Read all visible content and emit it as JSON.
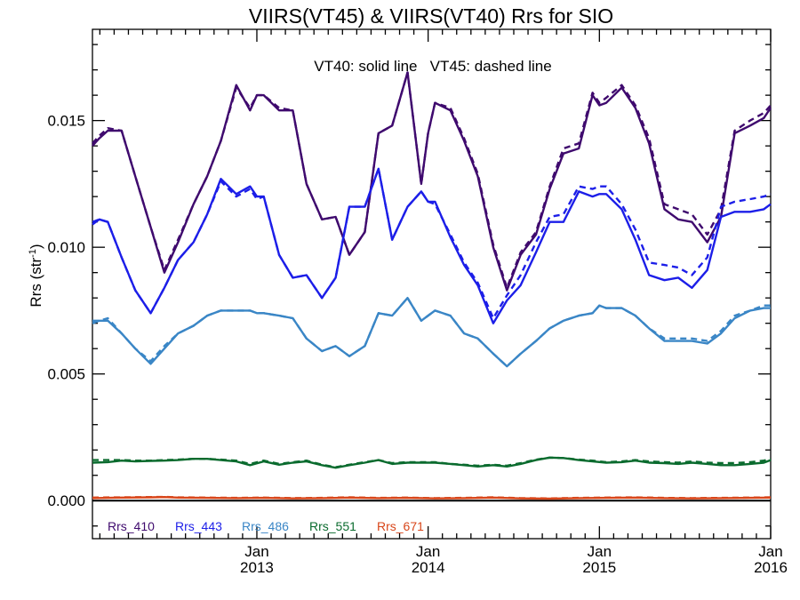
{
  "chart_data": {
    "type": "line",
    "title": "VIIRS(VT45) & VIIRS(VT40)  Rrs for SIO",
    "annotation": "VT40: solid line   VT45: dashed line",
    "ylabel": "Rrs (str",
    "ylabel_sup": "-1",
    "ylabel_close": ")",
    "xlim": [
      2012.04,
      2016.0
    ],
    "ylim": [
      -0.0015,
      0.0186
    ],
    "yticks": [
      {
        "value": 0.0,
        "label": "0.000"
      },
      {
        "value": 0.005,
        "label": "0.005"
      },
      {
        "value": 0.01,
        "label": "0.010"
      },
      {
        "value": 0.015,
        "label": "0.015"
      }
    ],
    "xticks": [
      {
        "value": 2013.0,
        "label1": "Jan",
        "label2": "2013"
      },
      {
        "value": 2014.0,
        "label1": "Jan",
        "label2": "2014"
      },
      {
        "value": 2015.0,
        "label1": "Jan",
        "label2": "2015"
      },
      {
        "value": 2016.0,
        "label1": "Jan",
        "label2": "2016"
      }
    ],
    "reference_line": 0.0,
    "legend_position": "bottom-left",
    "series": [
      {
        "name": "Rrs_410",
        "color": "#3f0a6e",
        "x": [
          2012.04,
          2012.08,
          2012.13,
          2012.21,
          2012.29,
          2012.38,
          2012.46,
          2012.54,
          2012.63,
          2012.71,
          2012.79,
          2012.88,
          2012.96,
          2013.0,
          2013.04,
          2013.13,
          2013.21,
          2013.29,
          2013.38,
          2013.46,
          2013.54,
          2013.63,
          2013.71,
          2013.79,
          2013.88,
          2013.96,
          2014.0,
          2014.04,
          2014.13,
          2014.21,
          2014.29,
          2014.38,
          2014.46,
          2014.54,
          2014.63,
          2014.71,
          2014.79,
          2014.88,
          2014.96,
          2015.0,
          2015.04,
          2015.13,
          2015.21,
          2015.29,
          2015.38,
          2015.46,
          2015.54,
          2015.63,
          2015.71,
          2015.79,
          2015.88,
          2015.96,
          2016.0
        ],
        "solid": [
          0.014,
          0.0143,
          0.0146,
          0.0146,
          0.0128,
          0.0108,
          0.009,
          0.0102,
          0.0117,
          0.0128,
          0.0142,
          0.0164,
          0.0154,
          0.016,
          0.016,
          0.0154,
          0.0154,
          0.0125,
          0.0111,
          0.0112,
          0.0097,
          0.0106,
          0.0145,
          0.0148,
          0.0169,
          0.0125,
          0.0145,
          0.0157,
          0.0154,
          0.0142,
          0.0128,
          0.01,
          0.0083,
          0.0097,
          0.0105,
          0.0123,
          0.0137,
          0.0139,
          0.016,
          0.0156,
          0.0157,
          0.0163,
          0.0155,
          0.0141,
          0.0115,
          0.0111,
          0.011,
          0.0102,
          0.0112,
          0.0145,
          0.0148,
          0.0151,
          0.0155
        ],
        "dashed": [
          0.0141,
          0.0144,
          0.0147,
          0.0146,
          0.0128,
          0.0108,
          0.0091,
          0.0103,
          0.0117,
          0.0128,
          0.0142,
          0.0163,
          0.0155,
          0.016,
          0.016,
          0.0155,
          0.0154,
          0.0125,
          0.0111,
          0.0112,
          0.0097,
          0.0106,
          0.0145,
          0.0148,
          0.0169,
          0.0125,
          0.0145,
          0.0157,
          0.0155,
          0.0143,
          0.0129,
          0.0101,
          0.0084,
          0.0098,
          0.0106,
          0.0124,
          0.0139,
          0.0141,
          0.0161,
          0.0157,
          0.0159,
          0.0164,
          0.0156,
          0.0143,
          0.0117,
          0.0115,
          0.0113,
          0.0105,
          0.0115,
          0.0146,
          0.015,
          0.0153,
          0.0156
        ]
      },
      {
        "name": "Rrs_443",
        "color": "#1c1ee8",
        "x": [
          2012.04,
          2012.08,
          2012.13,
          2012.21,
          2012.29,
          2012.38,
          2012.46,
          2012.54,
          2012.63,
          2012.71,
          2012.79,
          2012.88,
          2012.96,
          2013.0,
          2013.04,
          2013.13,
          2013.21,
          2013.29,
          2013.38,
          2013.46,
          2013.54,
          2013.63,
          2013.71,
          2013.79,
          2013.88,
          2013.96,
          2014.0,
          2014.04,
          2014.13,
          2014.21,
          2014.29,
          2014.38,
          2014.46,
          2014.54,
          2014.63,
          2014.71,
          2014.79,
          2014.88,
          2014.96,
          2015.0,
          2015.04,
          2015.13,
          2015.21,
          2015.29,
          2015.38,
          2015.46,
          2015.54,
          2015.63,
          2015.71,
          2015.79,
          2015.88,
          2015.96,
          2016.0
        ],
        "solid": [
          0.0109,
          0.0111,
          0.011,
          0.0096,
          0.0083,
          0.0074,
          0.0084,
          0.0095,
          0.0102,
          0.0113,
          0.0127,
          0.0121,
          0.0124,
          0.012,
          0.012,
          0.0097,
          0.0088,
          0.0089,
          0.008,
          0.0088,
          0.0116,
          0.0116,
          0.0131,
          0.0103,
          0.0116,
          0.0122,
          0.0118,
          0.0118,
          0.0104,
          0.0093,
          0.0085,
          0.007,
          0.0079,
          0.0085,
          0.0098,
          0.011,
          0.011,
          0.0122,
          0.012,
          0.0121,
          0.0121,
          0.0115,
          0.0103,
          0.0089,
          0.0087,
          0.0088,
          0.0084,
          0.0091,
          0.0112,
          0.0114,
          0.0114,
          0.0115,
          0.0117
        ],
        "dashed": [
          0.011,
          0.0111,
          0.011,
          0.0096,
          0.0083,
          0.0074,
          0.0084,
          0.0095,
          0.0102,
          0.0113,
          0.0126,
          0.012,
          0.0123,
          0.0119,
          0.012,
          0.0097,
          0.0088,
          0.0089,
          0.008,
          0.0088,
          0.0116,
          0.0116,
          0.0131,
          0.0103,
          0.0116,
          0.0122,
          0.0118,
          0.0117,
          0.0105,
          0.0094,
          0.0086,
          0.0072,
          0.0081,
          0.0089,
          0.0102,
          0.0112,
          0.0113,
          0.0124,
          0.0123,
          0.0124,
          0.0124,
          0.0117,
          0.0107,
          0.0094,
          0.0093,
          0.0092,
          0.0089,
          0.0096,
          0.0116,
          0.0118,
          0.0119,
          0.012,
          0.0121
        ]
      },
      {
        "name": "Rrs_486",
        "color": "#3a86c6",
        "x": [
          2012.04,
          2012.08,
          2012.13,
          2012.21,
          2012.29,
          2012.38,
          2012.46,
          2012.54,
          2012.63,
          2012.71,
          2012.79,
          2012.88,
          2012.96,
          2013.0,
          2013.04,
          2013.13,
          2013.21,
          2013.29,
          2013.38,
          2013.46,
          2013.54,
          2013.63,
          2013.71,
          2013.79,
          2013.88,
          2013.96,
          2014.0,
          2014.04,
          2014.13,
          2014.21,
          2014.29,
          2014.38,
          2014.46,
          2014.54,
          2014.63,
          2014.71,
          2014.79,
          2014.88,
          2014.96,
          2015.0,
          2015.04,
          2015.13,
          2015.21,
          2015.29,
          2015.38,
          2015.46,
          2015.54,
          2015.63,
          2015.71,
          2015.79,
          2015.88,
          2015.96,
          2016.0
        ],
        "solid": [
          0.007,
          0.0071,
          0.0071,
          0.0066,
          0.006,
          0.0054,
          0.006,
          0.0066,
          0.0069,
          0.0073,
          0.0075,
          0.0075,
          0.0075,
          0.0074,
          0.0074,
          0.0073,
          0.0072,
          0.0064,
          0.0059,
          0.0061,
          0.0057,
          0.0061,
          0.0074,
          0.0073,
          0.008,
          0.0071,
          0.0073,
          0.0075,
          0.0073,
          0.0066,
          0.0064,
          0.0058,
          0.0053,
          0.0058,
          0.0063,
          0.0068,
          0.0071,
          0.0073,
          0.0074,
          0.0077,
          0.0076,
          0.0076,
          0.0073,
          0.0068,
          0.0063,
          0.0063,
          0.0063,
          0.0062,
          0.0066,
          0.0072,
          0.0075,
          0.0076,
          0.0076
        ],
        "dashed": [
          0.0071,
          0.0071,
          0.0072,
          0.0066,
          0.006,
          0.0055,
          0.0061,
          0.0066,
          0.0069,
          0.0073,
          0.0075,
          0.0075,
          0.0075,
          0.0074,
          0.0074,
          0.0073,
          0.0072,
          0.0064,
          0.0059,
          0.0061,
          0.0057,
          0.0061,
          0.0074,
          0.0073,
          0.008,
          0.0071,
          0.0073,
          0.0075,
          0.0073,
          0.0066,
          0.0064,
          0.0058,
          0.0053,
          0.0058,
          0.0063,
          0.0068,
          0.0071,
          0.0073,
          0.0074,
          0.0077,
          0.0076,
          0.0076,
          0.0073,
          0.0068,
          0.0064,
          0.0064,
          0.0064,
          0.0063,
          0.0067,
          0.0073,
          0.0075,
          0.0077,
          0.0077
        ]
      },
      {
        "name": "Rrs_551",
        "color": "#0a6b2e",
        "x": [
          2012.04,
          2012.13,
          2012.21,
          2012.29,
          2012.38,
          2012.46,
          2012.54,
          2012.63,
          2012.71,
          2012.79,
          2012.88,
          2012.96,
          2013.04,
          2013.13,
          2013.21,
          2013.29,
          2013.38,
          2013.46,
          2013.54,
          2013.63,
          2013.71,
          2013.79,
          2013.88,
          2013.96,
          2014.04,
          2014.13,
          2014.21,
          2014.29,
          2014.38,
          2014.46,
          2014.54,
          2014.63,
          2014.71,
          2014.79,
          2014.88,
          2014.96,
          2015.04,
          2015.13,
          2015.21,
          2015.29,
          2015.38,
          2015.46,
          2015.54,
          2015.63,
          2015.71,
          2015.79,
          2015.88,
          2015.96,
          2016.0
        ],
        "solid": [
          0.0015,
          0.00152,
          0.00158,
          0.00155,
          0.00157,
          0.00158,
          0.0016,
          0.00165,
          0.00165,
          0.0016,
          0.00155,
          0.0014,
          0.00155,
          0.00142,
          0.0015,
          0.00155,
          0.0014,
          0.0013,
          0.0014,
          0.0015,
          0.0016,
          0.00145,
          0.0015,
          0.0015,
          0.0015,
          0.00145,
          0.0014,
          0.00135,
          0.0014,
          0.00135,
          0.00145,
          0.0016,
          0.0017,
          0.00168,
          0.0016,
          0.00155,
          0.0015,
          0.00152,
          0.00158,
          0.0015,
          0.00148,
          0.00145,
          0.0015,
          0.00145,
          0.0014,
          0.0014,
          0.00145,
          0.0015,
          0.0016
        ],
        "dashed": [
          0.0016,
          0.0016,
          0.0016,
          0.00158,
          0.00158,
          0.0016,
          0.00162,
          0.00165,
          0.00165,
          0.00162,
          0.00158,
          0.00145,
          0.00158,
          0.00145,
          0.00152,
          0.00158,
          0.00142,
          0.00132,
          0.00142,
          0.00152,
          0.0016,
          0.00148,
          0.00152,
          0.00152,
          0.00152,
          0.00145,
          0.00142,
          0.00138,
          0.00142,
          0.00138,
          0.00148,
          0.00162,
          0.0017,
          0.00168,
          0.00162,
          0.00158,
          0.00152,
          0.00155,
          0.0016,
          0.00155,
          0.00152,
          0.0015,
          0.00155,
          0.0015,
          0.00148,
          0.00148,
          0.00152,
          0.00158,
          0.00165
        ]
      },
      {
        "name": "Rrs_671",
        "color": "#d8461a",
        "x": [
          2012.04,
          2012.21,
          2012.38,
          2012.46,
          2012.54,
          2012.71,
          2012.88,
          2013.04,
          2013.21,
          2013.38,
          2013.54,
          2013.71,
          2013.88,
          2014.04,
          2014.21,
          2014.38,
          2014.54,
          2014.71,
          2014.88,
          2015.04,
          2015.21,
          2015.38,
          2015.54,
          2015.71,
          2015.88,
          2016.0
        ],
        "solid": [
          0.0001,
          0.00012,
          0.00013,
          0.00014,
          0.00012,
          0.00011,
          0.0001,
          0.00011,
          9e-05,
          0.0001,
          0.00012,
          0.0001,
          0.00011,
          9e-05,
          0.0001,
          0.00012,
          9e-05,
          8e-05,
          0.0001,
          0.00011,
          0.00012,
          0.0001,
          9e-05,
          0.0001,
          0.00011,
          0.00012
        ],
        "dashed": [
          0.00012,
          0.00013,
          0.00014,
          0.00015,
          0.00013,
          0.00012,
          0.00011,
          0.00012,
          0.0001,
          0.00011,
          0.00013,
          0.00011,
          0.00012,
          0.0001,
          0.00011,
          0.00013,
          0.0001,
          9e-05,
          0.00011,
          0.00012,
          0.00013,
          0.00011,
          0.0001,
          0.00011,
          0.00012,
          0.00013
        ]
      }
    ]
  }
}
